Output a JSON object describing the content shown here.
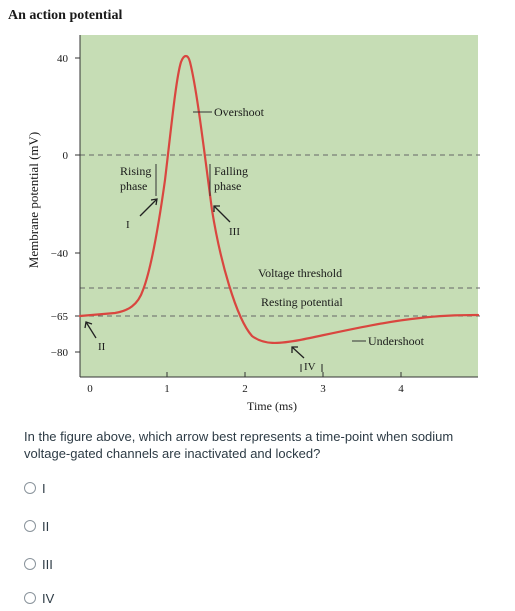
{
  "figure": {
    "title": "An action potential",
    "ylabel": "Membrane potential (mV)",
    "xlabel": "Time (ms)",
    "y_ticks": [
      "40",
      "0",
      "−40",
      "−65",
      "−80"
    ],
    "x_ticks": [
      "0",
      "1",
      "2",
      "3",
      "4"
    ],
    "labels": {
      "overshoot": "Overshoot",
      "rising_line1": "Rising",
      "rising_line2": "phase",
      "falling_line1": "Falling",
      "falling_line2": "phase",
      "voltage_threshold": "Voltage threshold",
      "resting_potential": "Resting potential",
      "undershoot": "Undershoot",
      "marker_I": "I",
      "marker_II": "II",
      "marker_III": "III",
      "marker_IV": "IV"
    },
    "colors": {
      "plot_background": "#c6ddb5",
      "trace": "#d9463f",
      "dashed_lines": "#666666"
    }
  },
  "question": "In the figure above, which arrow best represents a time-point when sodium voltage-gated channels are inactivated and locked?",
  "options": [
    "I",
    "II",
    "III",
    "IV"
  ]
}
